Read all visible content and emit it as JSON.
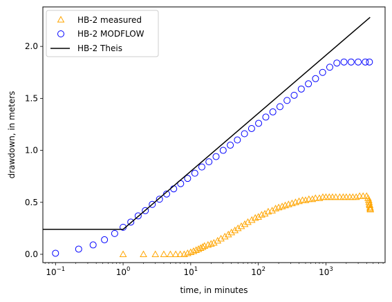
{
  "chart_data": {
    "type": "scatter",
    "xlabel": "time, in minutes",
    "ylabel": "drawdown, in meters",
    "xscale": "log",
    "xlim": [
      0.065,
      7500
    ],
    "ylim": [
      -0.08,
      2.38
    ],
    "grid": false,
    "legend_position": "top-left",
    "x_ticks": [
      {
        "value": 0.1,
        "base": "10",
        "exp": "−1"
      },
      {
        "value": 1,
        "base": "10",
        "exp": "0"
      },
      {
        "value": 10,
        "base": "10",
        "exp": "1"
      },
      {
        "value": 100,
        "base": "10",
        "exp": "2"
      },
      {
        "value": 1000,
        "base": "10",
        "exp": "3"
      }
    ],
    "y_ticks": [
      "0.0",
      "0.5",
      "1.0",
      "1.5",
      "2.0"
    ],
    "series": [
      {
        "name": "HB-2 measured",
        "marker": "triangle",
        "color": "#ffa500",
        "x": [
          1,
          2,
          3,
          4,
          5,
          6,
          7,
          8,
          9,
          10,
          11,
          12,
          13,
          14,
          15,
          16,
          18,
          20,
          22,
          25,
          28,
          32,
          36,
          40,
          45,
          50,
          56,
          63,
          70,
          80,
          90,
          100,
          112,
          125,
          140,
          160,
          180,
          200,
          225,
          250,
          280,
          315,
          355,
          400,
          450,
          500,
          560,
          630,
          700,
          800,
          900,
          1000,
          1120,
          1250,
          1400,
          1600,
          1800,
          2000,
          2250,
          2500,
          2800,
          3150,
          3550,
          4000,
          4200,
          4300,
          4350,
          4400,
          4450,
          4500,
          4520,
          4540
        ],
        "y": [
          0.0,
          0.0,
          0.0,
          0.0,
          0.0,
          0.0,
          0.0,
          0.0,
          0.01,
          0.02,
          0.03,
          0.04,
          0.05,
          0.06,
          0.07,
          0.08,
          0.09,
          0.1,
          0.11,
          0.13,
          0.15,
          0.17,
          0.19,
          0.21,
          0.23,
          0.25,
          0.27,
          0.29,
          0.31,
          0.33,
          0.35,
          0.36,
          0.38,
          0.39,
          0.41,
          0.42,
          0.44,
          0.45,
          0.46,
          0.47,
          0.48,
          0.49,
          0.5,
          0.51,
          0.52,
          0.52,
          0.53,
          0.53,
          0.54,
          0.54,
          0.55,
          0.55,
          0.55,
          0.55,
          0.55,
          0.55,
          0.55,
          0.55,
          0.55,
          0.55,
          0.55,
          0.56,
          0.56,
          0.56,
          0.54,
          0.52,
          0.5,
          0.48,
          0.47,
          0.45,
          0.44,
          0.43
        ]
      },
      {
        "name": "HB-2 MODFLOW",
        "marker": "circle",
        "color": "#0000ff",
        "x": [
          0.1,
          0.22,
          0.36,
          0.53,
          0.75,
          1.0,
          1.3,
          1.67,
          2.13,
          2.7,
          3.45,
          4.4,
          5.6,
          7.1,
          9.0,
          11.5,
          14.6,
          18.6,
          23.7,
          30.2,
          38.5,
          49.0,
          62.4,
          79.5,
          101,
          129,
          164,
          209,
          266,
          339,
          432,
          551,
          702,
          894,
          1139,
          1451,
          1849,
          2356,
          3002,
          3824,
          4400
        ],
        "y": [
          0.01,
          0.05,
          0.09,
          0.14,
          0.2,
          0.26,
          0.31,
          0.37,
          0.42,
          0.48,
          0.53,
          0.58,
          0.63,
          0.68,
          0.73,
          0.78,
          0.84,
          0.89,
          0.94,
          1.0,
          1.05,
          1.1,
          1.16,
          1.21,
          1.26,
          1.32,
          1.37,
          1.42,
          1.48,
          1.53,
          1.59,
          1.64,
          1.69,
          1.75,
          1.8,
          1.84,
          1.85,
          1.85,
          1.85,
          1.85,
          1.85
        ]
      },
      {
        "name": "HB-2 Theis",
        "marker": "line",
        "color": "#000000",
        "x": [
          0.065,
          1.0,
          4500
        ],
        "y": [
          0.24,
          0.24,
          2.28
        ]
      }
    ]
  }
}
